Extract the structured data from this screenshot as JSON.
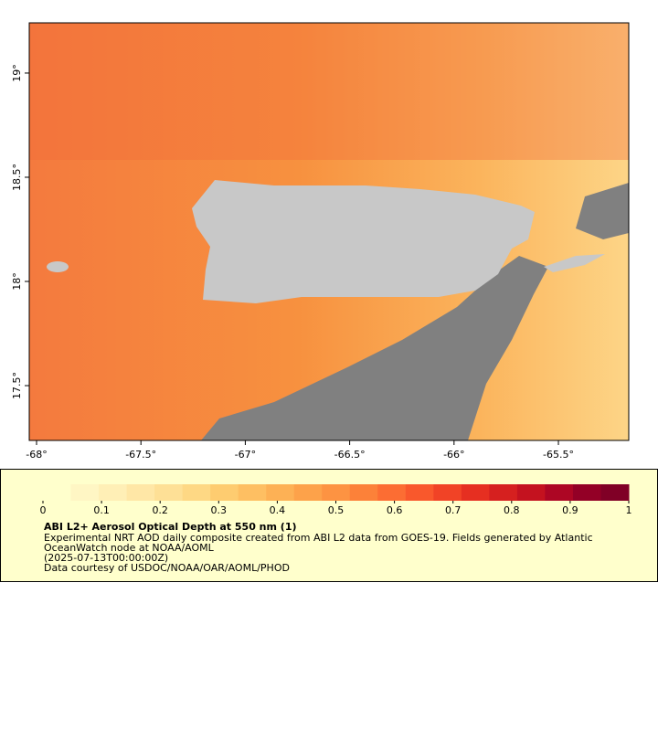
{
  "map": {
    "lon_range": [
      -68.035,
      -65.163
    ],
    "lat_range": [
      17.237,
      19.241
    ],
    "lon_ticks": [
      {
        "value": -68,
        "label": "-68°"
      },
      {
        "value": -67.5,
        "label": "-67.5°"
      },
      {
        "value": -67,
        "label": "-67°"
      },
      {
        "value": -66.5,
        "label": "-66.5°"
      },
      {
        "value": -66,
        "label": "-66°"
      },
      {
        "value": -65.5,
        "label": "-65.5°"
      }
    ],
    "lat_ticks": [
      {
        "value": 17.5,
        "label": "17.5°"
      },
      {
        "value": 18,
        "label": "18°"
      },
      {
        "value": 18.5,
        "label": "18.5°"
      },
      {
        "value": 19,
        "label": "19°"
      }
    ]
  },
  "colorbar": {
    "range": [
      0,
      1
    ],
    "ticks": [
      0,
      0.1,
      0.2,
      0.3,
      0.4,
      0.5,
      0.6,
      0.7,
      0.8,
      0.9,
      1
    ],
    "colors": [
      "#ffffcc",
      "#fff6c4",
      "#ffefb6",
      "#ffe7a6",
      "#fee096",
      "#fed884",
      "#fecc70",
      "#febf62",
      "#fdb155",
      "#fda24a",
      "#fd9342",
      "#fc8139",
      "#fc6d33",
      "#f9582c",
      "#f14326",
      "#e62f21",
      "#d6201f",
      "#c4121f",
      "#ad0624",
      "#930026",
      "#800026"
    ]
  },
  "caption": {
    "title": "ABI L2+ Aerosol Optical Depth at 550 nm (1)",
    "lines": [
      "Experimental NRT AOD daily composite created from ABI L2 data from GOES-19. Fields generated by Atlantic",
      "OceanWatch node at NOAA/AOML",
      "(2025-07-13T00:00:00Z)",
      "Data courtesy of USDOC/NOAA/OAR/AOML/PHOD"
    ]
  }
}
